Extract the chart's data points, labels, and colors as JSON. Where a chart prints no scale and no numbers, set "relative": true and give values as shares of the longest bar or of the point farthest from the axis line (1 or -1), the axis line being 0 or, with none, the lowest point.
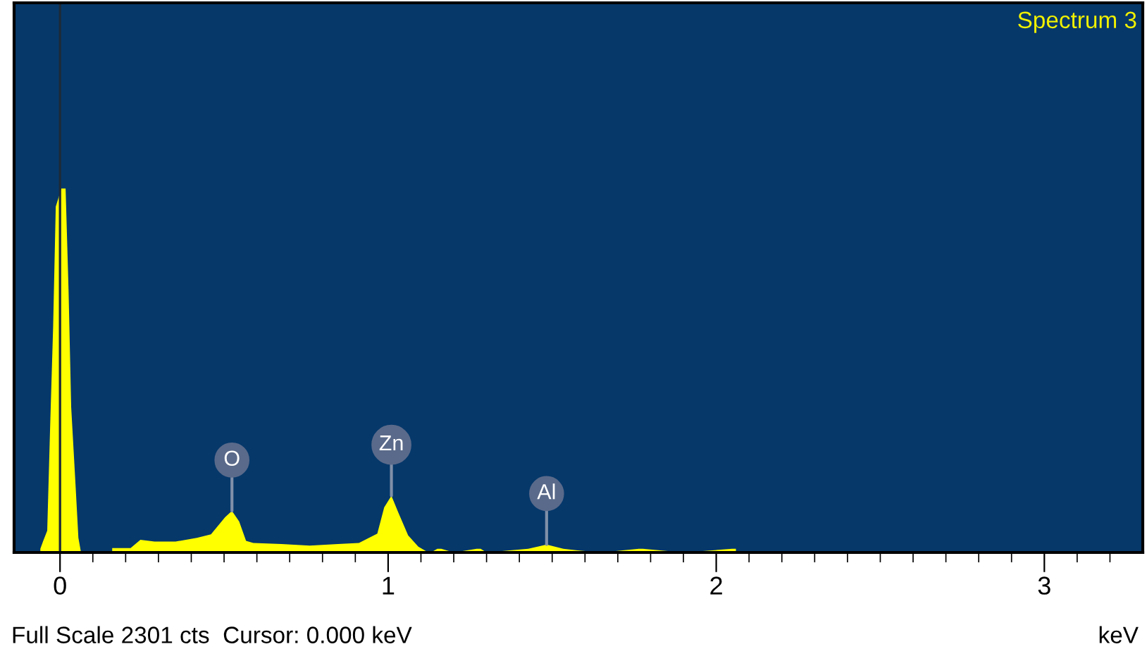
{
  "chart_data": {
    "type": "area",
    "title": "Spectrum 3",
    "xlabel": "keV",
    "relative": true,
    "color": "#ffff00",
    "x": [
      -0.06,
      -0.052,
      -0.039,
      -0.03,
      -0.021,
      -0.013,
      0.004,
      0.017,
      0.026,
      0.034,
      0.047,
      0.056,
      0.064,
      0.1,
      0.159,
      0.215,
      0.245,
      0.288,
      0.352,
      0.417,
      0.46,
      0.503,
      0.524,
      0.546,
      0.567,
      0.589,
      0.675,
      0.761,
      0.847,
      0.911,
      0.967,
      0.988,
      1.01,
      1.031,
      1.061,
      1.092,
      1.117,
      1.13,
      1.15,
      1.162,
      1.2,
      1.27,
      1.282,
      1.3,
      1.371,
      1.427,
      1.483,
      1.534,
      1.577,
      1.65,
      1.764,
      1.776,
      1.9,
      2.048,
      2.06
    ],
    "values": [
      0.01,
      0.03,
      0.06,
      0.35,
      0.62,
      0.95,
      1,
      1,
      0.72,
      0.4,
      0.19,
      0.04,
      0,
      null,
      0.012,
      0.012,
      0.035,
      0.03,
      0.03,
      0.04,
      0.05,
      0.097,
      0.114,
      0.085,
      0.032,
      0.026,
      0.023,
      0.019,
      0.023,
      0.026,
      0.052,
      0.124,
      0.156,
      0.11,
      0.047,
      0.016,
      0.003,
      0,
      0.01,
      0.01,
      0,
      0.01,
      0.01,
      0,
      0.006,
      0.01,
      0.022,
      0.01,
      0.006,
      0,
      0.01,
      0.01,
      0,
      0.01,
      0.01
    ],
    "xlim": [
      -0.14,
      3.3
    ],
    "xticks": [
      0,
      1,
      2,
      3,
      {
        "value": 0.1,
        "label": null
      },
      {
        "value": 0.2,
        "label": null
      },
      {
        "value": 0.3,
        "label": null
      },
      {
        "value": 0.4,
        "label": null
      },
      {
        "value": 0.5,
        "label": null
      },
      {
        "value": 0.6,
        "label": null
      },
      {
        "value": 0.7,
        "label": null
      },
      {
        "value": 0.8,
        "label": null
      },
      {
        "value": 0.9,
        "label": null
      },
      {
        "value": 1.1,
        "label": null
      },
      {
        "value": 1.2,
        "label": null
      },
      {
        "value": 1.3,
        "label": null
      },
      {
        "value": 1.4,
        "label": null
      },
      {
        "value": 1.5,
        "label": null
      },
      {
        "value": 1.6,
        "label": null
      },
      {
        "value": 1.7,
        "label": null
      },
      {
        "value": 1.8,
        "label": null
      },
      {
        "value": 1.9,
        "label": null
      },
      {
        "value": 2.1,
        "label": null
      },
      {
        "value": 2.2,
        "label": null
      },
      {
        "value": 2.3,
        "label": null
      },
      {
        "value": 2.4,
        "label": null
      },
      {
        "value": 2.5,
        "label": null
      },
      {
        "value": 2.6,
        "label": null
      },
      {
        "value": 2.7,
        "label": null
      },
      {
        "value": 2.8,
        "label": null
      },
      {
        "value": 2.9,
        "label": null
      },
      {
        "value": 3.1,
        "label": null
      },
      {
        "value": 3.2,
        "label": null
      }
    ],
    "ref_lines": [
      {
        "axis": "x",
        "value": 0,
        "color": "#1e2a38"
      }
    ],
    "annotations": [
      {
        "text": "O",
        "x": 0.524,
        "y": 0.114
      },
      {
        "text": "Zn",
        "x": 1.01,
        "y": 0.156
      },
      {
        "text": "Al",
        "x": 1.483,
        "y": 0.022
      },
      "Full Scale 2301 cts  Cursor: 0.000 keV"
    ]
  }
}
